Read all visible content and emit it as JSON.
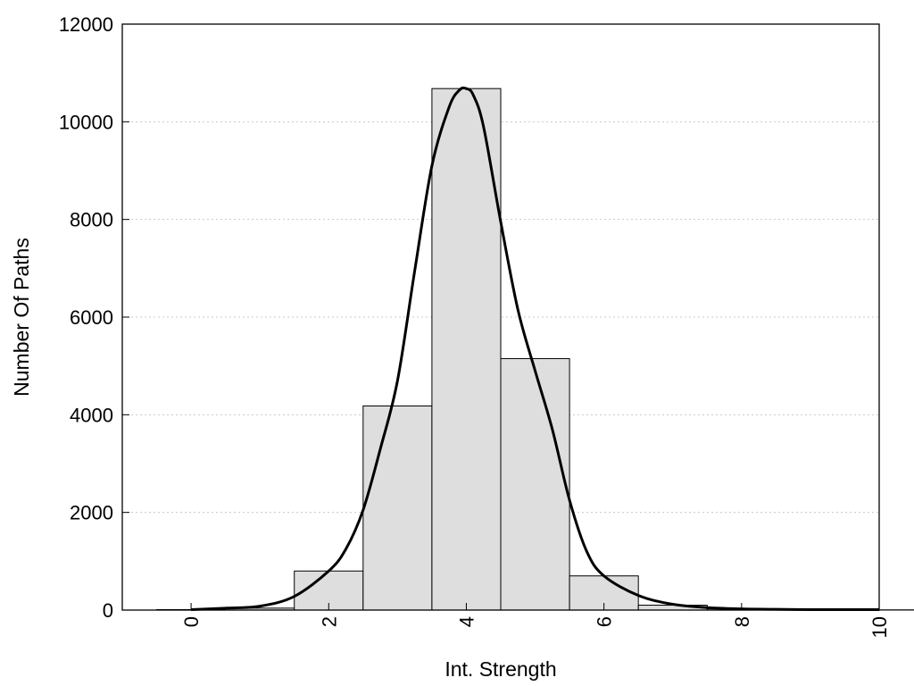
{
  "chart_data": {
    "type": "bar",
    "title": "",
    "xlabel": "Int. Strength",
    "ylabel": "Number Of Paths",
    "xlim": [
      -1,
      10
    ],
    "ylim": [
      0,
      12000
    ],
    "x_ticks": [
      0,
      2,
      4,
      6,
      8,
      10
    ],
    "y_ticks": [
      0,
      2000,
      4000,
      6000,
      8000,
      10000,
      12000
    ],
    "grid": "horizontal dotted",
    "bins": [
      {
        "x": 0,
        "value": 10
      },
      {
        "x": 1,
        "value": 40
      },
      {
        "x": 2,
        "value": 800
      },
      {
        "x": 3,
        "value": 4180
      },
      {
        "x": 4,
        "value": 10680
      },
      {
        "x": 5,
        "value": 5150
      },
      {
        "x": 6,
        "value": 700
      },
      {
        "x": 7,
        "value": 100
      },
      {
        "x": 8,
        "value": 25
      },
      {
        "x": 9,
        "value": 10
      },
      {
        "x": 10,
        "value": 5
      }
    ],
    "curve": {
      "x": [
        0,
        0.5,
        1,
        1.5,
        2,
        2.25,
        2.5,
        2.75,
        3,
        3.25,
        3.5,
        3.75,
        3.9,
        4,
        4.1,
        4.25,
        4.5,
        4.75,
        5,
        5.25,
        5.5,
        5.75,
        6,
        6.5,
        7,
        7.5,
        8,
        8.5,
        9,
        9.5,
        10
      ],
      "y": [
        10,
        40,
        80,
        280,
        800,
        1250,
        2050,
        3300,
        4700,
        6950,
        9100,
        10300,
        10650,
        10680,
        10550,
        9900,
        7950,
        6150,
        4900,
        3700,
        2250,
        1200,
        700,
        300,
        120,
        50,
        25,
        15,
        10,
        10,
        10
      ]
    },
    "colors": {
      "bar_fill": "#dedede",
      "bar_stroke": "#000000",
      "curve": "#000000",
      "grid": "#c8c8c8"
    }
  }
}
